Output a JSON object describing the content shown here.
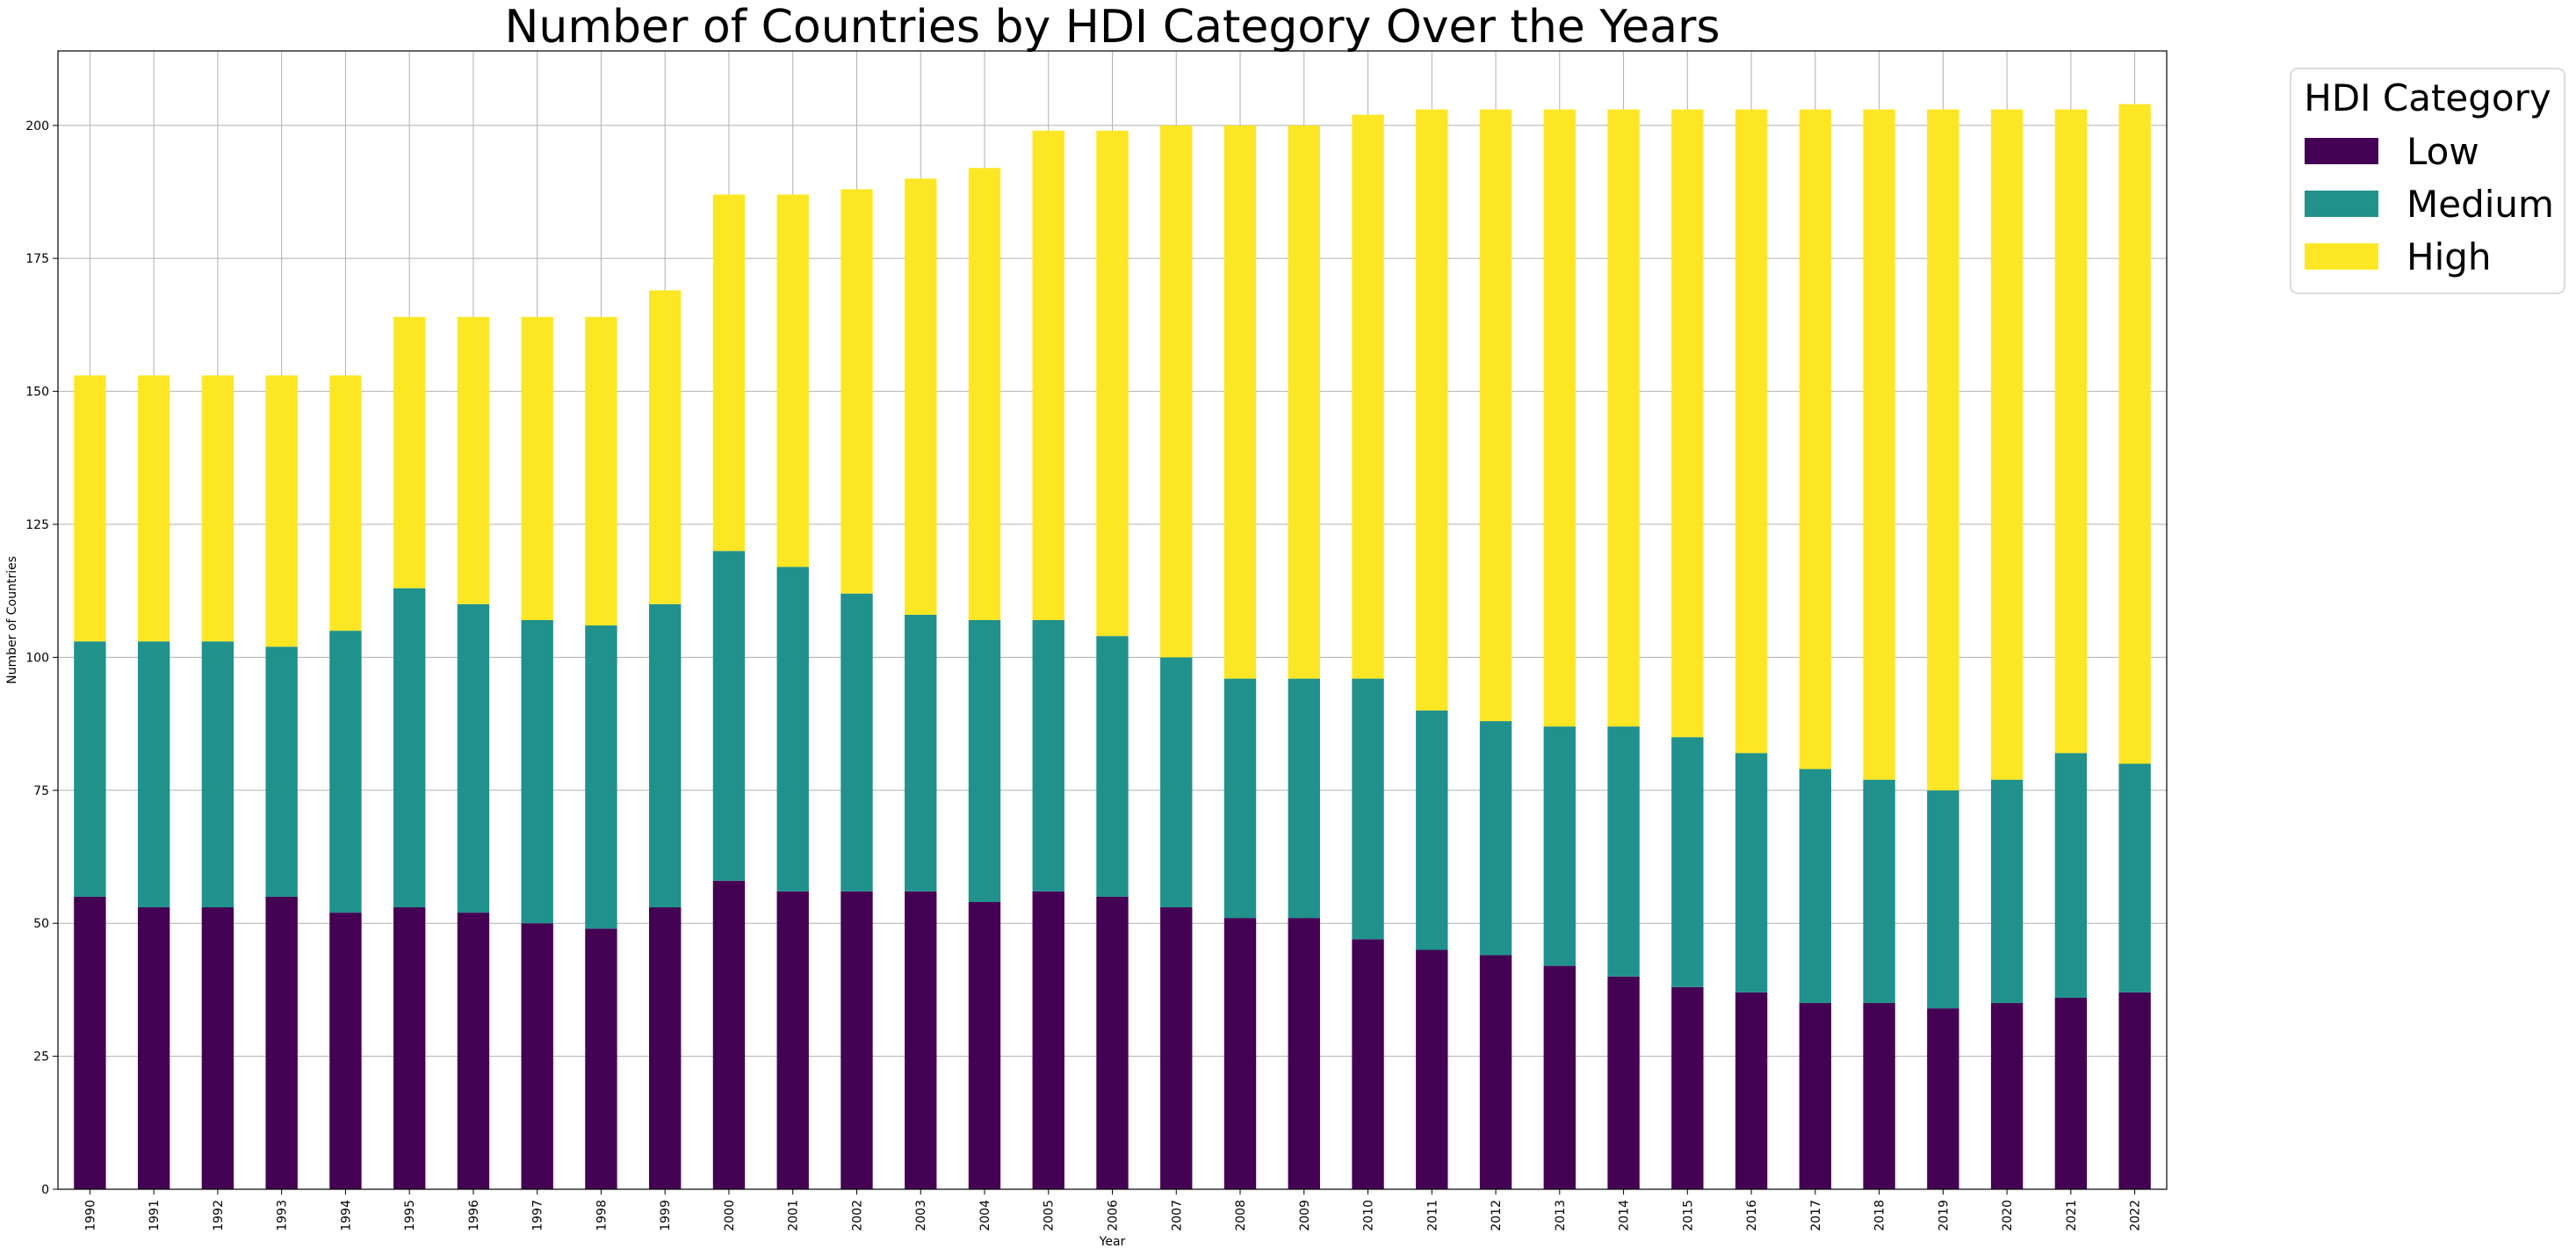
{
  "chart_data": {
    "type": "bar",
    "stacked": true,
    "title": "Number of Countries by HDI Category Over the Years",
    "xlabel": "Year",
    "ylabel": "Number of Countries",
    "ylim": [
      0,
      214
    ],
    "yticks": [
      0,
      25,
      50,
      75,
      100,
      125,
      150,
      175,
      200
    ],
    "grid": true,
    "legend": {
      "title": "HDI Category",
      "placement": "outside-top-right"
    },
    "categories": [
      "1990",
      "1991",
      "1992",
      "1993",
      "1994",
      "1995",
      "1996",
      "1997",
      "1998",
      "1999",
      "2000",
      "2001",
      "2002",
      "2003",
      "2004",
      "2005",
      "2006",
      "2007",
      "2008",
      "2009",
      "2010",
      "2011",
      "2012",
      "2013",
      "2014",
      "2015",
      "2016",
      "2017",
      "2018",
      "2019",
      "2020",
      "2021",
      "2022"
    ],
    "series": [
      {
        "name": "Low",
        "color": "#440154",
        "values": [
          55,
          53,
          53,
          55,
          52,
          53,
          52,
          50,
          49,
          53,
          58,
          56,
          56,
          56,
          54,
          56,
          55,
          53,
          51,
          51,
          47,
          45,
          44,
          42,
          40,
          38,
          37,
          35,
          35,
          34,
          35,
          36,
          37
        ]
      },
      {
        "name": "Medium",
        "color": "#21918c",
        "values": [
          48,
          50,
          50,
          47,
          53,
          60,
          58,
          57,
          57,
          57,
          62,
          61,
          56,
          52,
          53,
          51,
          49,
          47,
          45,
          45,
          49,
          45,
          44,
          45,
          47,
          47,
          45,
          44,
          42,
          41,
          42,
          46,
          43
        ]
      },
      {
        "name": "High",
        "color": "#fde725",
        "values": [
          50,
          50,
          50,
          51,
          48,
          51,
          54,
          57,
          58,
          59,
          67,
          70,
          76,
          82,
          85,
          92,
          95,
          100,
          104,
          104,
          106,
          113,
          115,
          116,
          116,
          118,
          121,
          124,
          126,
          128,
          126,
          121,
          124
        ]
      }
    ]
  }
}
